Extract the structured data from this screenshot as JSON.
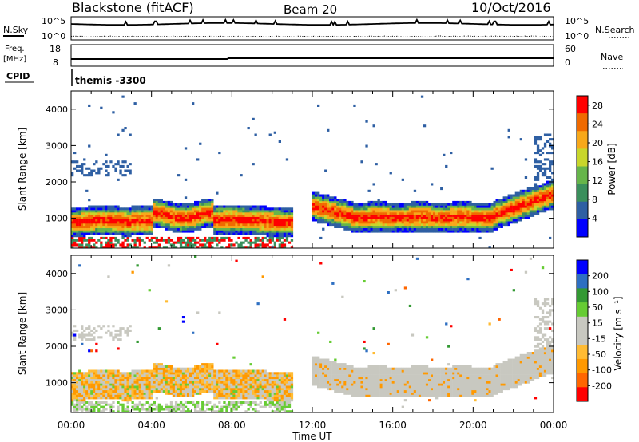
{
  "header": {
    "title": "Blackstone (fitACF)",
    "beam": "Beam 20",
    "date": "10/Oct/2016"
  },
  "noise_panel": {
    "left_label": "N.Sky",
    "right_label": "N.Search",
    "tick_top": "10^5",
    "tick_bottom": "10^0"
  },
  "freq_panel": {
    "left_label_line1": "Freq.",
    "left_label_line2": "[MHz]",
    "left_tick_top": "18",
    "left_tick_bottom": "8",
    "right_label": "Nave",
    "right_tick_top": "60",
    "right_tick_bottom": "0"
  },
  "cpid_panel": {
    "label": "CPID",
    "program": "themis -3300"
  },
  "colors": {
    "power_scale": [
      "#0000ff",
      "#2e5fa3",
      "#3a8f5c",
      "#66b54a",
      "#c8d62b",
      "#f7a81a",
      "#f06a00",
      "#ff0000"
    ],
    "velocity_scale": [
      "#ff0000",
      "#ff6600",
      "#ff9900",
      "#ffbb33",
      "#c8c8c0",
      "#c8c8c0",
      "#66cc33",
      "#339933",
      "#2e6fc2",
      "#0000ff"
    ]
  },
  "chart_data": [
    {
      "type": "heatmap",
      "name": "power",
      "ylabel": "Slant Range [km]",
      "xlabel": "",
      "x_range_hours": [
        0,
        24
      ],
      "ylim": [
        180,
        4500
      ],
      "y_ticks": [
        "1000",
        "2000",
        "3000",
        "4000"
      ],
      "x_ticks": [
        "00:00",
        "04:00",
        "08:00",
        "12:00",
        "16:00",
        "20:00",
        "00:00"
      ],
      "colorbar_label": "Power [dB]",
      "colorbar_ticks": [
        "4",
        "8",
        "12",
        "16",
        "20",
        "24",
        "28"
      ],
      "colorbar_range": [
        0,
        30
      ]
    },
    {
      "type": "heatmap",
      "name": "velocity",
      "ylabel": "Slant Range [km]",
      "xlabel": "Time UT",
      "x_range_hours": [
        0,
        24
      ],
      "ylim": [
        180,
        4500
      ],
      "y_ticks": [
        "1000",
        "2000",
        "3000",
        "4000"
      ],
      "x_ticks": [
        "00:00",
        "04:00",
        "08:00",
        "12:00",
        "16:00",
        "20:00",
        "00:00"
      ],
      "colorbar_label": "Velocity [m s⁻¹]",
      "colorbar_ticks": [
        "200",
        "100",
        "50",
        "15",
        "-15",
        "-50",
        "-100",
        "-200"
      ]
    }
  ]
}
